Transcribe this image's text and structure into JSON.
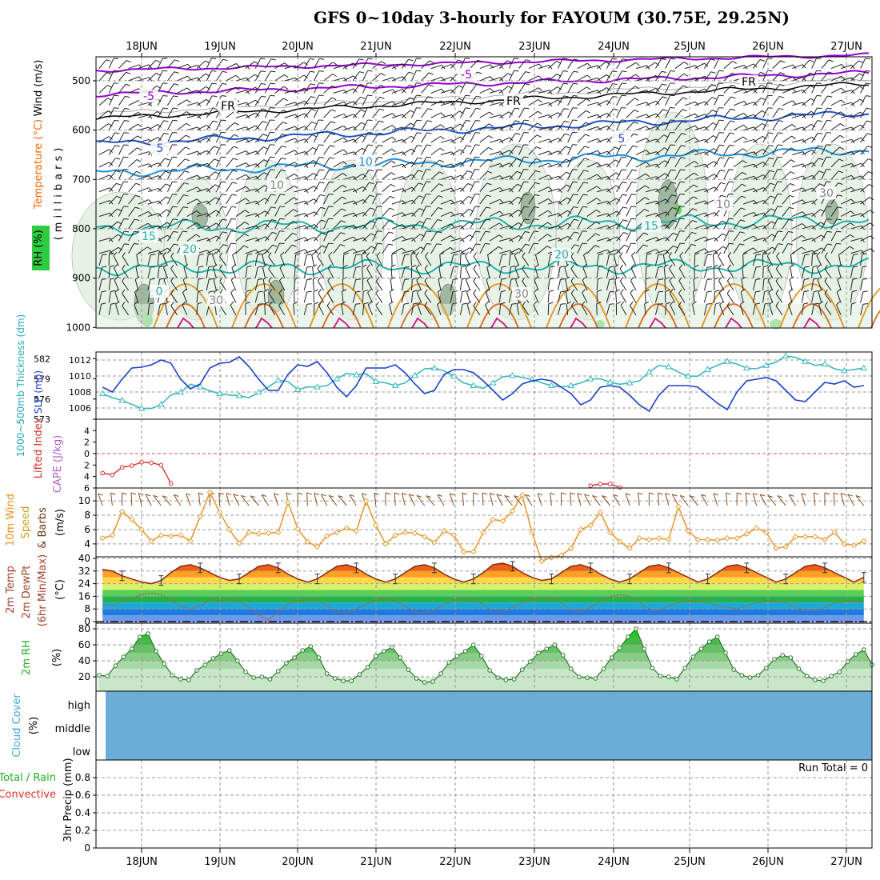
{
  "title": "GFS 0~10day 3-hourly for FAYOUM (30.75E, 29.25N)",
  "dates": [
    "18JUN",
    "19JUN",
    "20JUN",
    "21JUN",
    "22JUN",
    "23JUN",
    "24JUN",
    "25JUN",
    "26JUN",
    "27JUN"
  ],
  "panels": {
    "upper": {
      "ylabel": "(millibars)",
      "yticks": [
        "500",
        "600",
        "700",
        "800",
        "900",
        "1000"
      ],
      "legend": [
        {
          "text": "Wind (m/s)",
          "color": "#000000"
        },
        {
          "text": "Temperature (°C)",
          "color": "#ff6600"
        },
        {
          "text": "RH (%)",
          "color": "#2e8b2e"
        }
      ],
      "contour_labels": [
        {
          "text": "-5",
          "color": "#9400d3"
        },
        {
          "text": "-5",
          "color": "#9400d3"
        },
        {
          "text": "FR",
          "color": "#000000"
        },
        {
          "text": "FR",
          "color": "#000000"
        },
        {
          "text": "FR",
          "color": "#000000"
        },
        {
          "text": "5",
          "color": "#1e50c8"
        },
        {
          "text": "5",
          "color": "#1e50c8"
        },
        {
          "text": "10",
          "color": "#1e90d8"
        },
        {
          "text": "15",
          "color": "#20b2aa"
        },
        {
          "text": "15",
          "color": "#20b2aa"
        },
        {
          "text": "20",
          "color": "#20b2aa"
        },
        {
          "text": "20",
          "color": "#20b2aa"
        },
        {
          "text": "0",
          "color": "#20b2aa"
        },
        {
          "text": "10",
          "color": "#888888"
        },
        {
          "text": "10",
          "color": "#888888"
        },
        {
          "text": "30",
          "color": "#888888"
        },
        {
          "text": "30",
          "color": "#888888"
        },
        {
          "text": "30",
          "color": "#888888"
        }
      ]
    },
    "pressure": {
      "left_label": "1000~500mb Thickness (dm)",
      "right_label": "SLP (mb)",
      "yticks_left": [
        "573",
        "576",
        "579",
        "582"
      ],
      "yticks_right": [
        "1006",
        "1008",
        "1010",
        "1012"
      ]
    },
    "cape": {
      "left_label": "Lifted Index",
      "right_label": "CAPE (J/kg)",
      "yticks": [
        "-6",
        "-4",
        "-2",
        "0",
        "2",
        "4",
        "6"
      ]
    },
    "wind10m": {
      "label1": "10m Wind",
      "label2": "Speed",
      "label3": "& Barbs",
      "unit": "(m/s)",
      "yticks": [
        "4",
        "6",
        "8",
        "10"
      ]
    },
    "temp2m": {
      "label1": "2m Temp",
      "label2": "2m DewPt",
      "label3": "(6hr Min/Max)",
      "unit": "(°C)",
      "yticks": [
        "0",
        "8",
        "16",
        "24",
        "32",
        "40"
      ]
    },
    "rh2m": {
      "label": "2m RH",
      "unit": "(%)",
      "yticks": [
        "20",
        "40",
        "60",
        "80"
      ]
    },
    "cloud": {
      "label": "Cloud Cover",
      "unit": "(%)",
      "levels": [
        "high",
        "middle",
        "low"
      ]
    },
    "precip": {
      "label1": "Total / Rain",
      "label2": "Convective",
      "label3": "3hr Precip (mm)",
      "yticks": [
        "0",
        "0.2",
        "0.4",
        "0.6",
        "0.8"
      ],
      "run_total": "Run Total = 0"
    }
  },
  "chart_data": [
    {
      "type": "line",
      "name": "Sea level pressure and 1000-500mb thickness",
      "x": [
        "17JUN 12Z",
        "17JUN 15Z",
        "17JUN 18Z",
        "17JUN 21Z",
        "18JUN 00Z",
        "18JUN 03Z",
        "18JUN 06Z",
        "18JUN 09Z",
        "18JUN 12Z",
        "18JUN 15Z",
        "18JUN 18Z",
        "18JUN 21Z",
        "19JUN 00Z",
        "19JUN 03Z",
        "19JUN 06Z",
        "19JUN 09Z",
        "19JUN 12Z",
        "19JUN 15Z",
        "19JUN 18Z",
        "19JUN 21Z",
        "20JUN 00Z",
        "20JUN 03Z",
        "20JUN 06Z",
        "20JUN 09Z",
        "20JUN 12Z",
        "20JUN 15Z",
        "20JUN 18Z",
        "20JUN 21Z",
        "21JUN 00Z",
        "21JUN 03Z",
        "21JUN 06Z",
        "21JUN 09Z",
        "21JUN 12Z",
        "21JUN 15Z",
        "21JUN 18Z",
        "21JUN 21Z",
        "22JUN 00Z",
        "22JUN 03Z",
        "22JUN 06Z",
        "22JUN 09Z",
        "22JUN 12Z",
        "22JUN 15Z",
        "22JUN 18Z",
        "22JUN 21Z",
        "23JUN 00Z",
        "23JUN 03Z",
        "23JUN 06Z",
        "23JUN 09Z",
        "23JUN 12Z",
        "23JUN 15Z",
        "23JUN 18Z",
        "23JUN 21Z",
        "24JUN 00Z",
        "24JUN 03Z",
        "24JUN 06Z",
        "24JUN 09Z",
        "24JUN 12Z",
        "24JUN 15Z",
        "24JUN 18Z",
        "24JUN 21Z",
        "25JUN 00Z",
        "25JUN 03Z",
        "25JUN 06Z",
        "25JUN 09Z",
        "25JUN 12Z",
        "25JUN 15Z",
        "25JUN 18Z",
        "25JUN 21Z",
        "26JUN 00Z",
        "26JUN 03Z",
        "26JUN 06Z",
        "26JUN 09Z",
        "26JUN 12Z",
        "26JUN 15Z",
        "26JUN 18Z",
        "26JUN 21Z",
        "27JUN 00Z",
        "27JUN 03Z",
        "27JUN 06Z"
      ],
      "series": [
        {
          "name": "SLP (mb)",
          "color": "#1a3fc8",
          "values": [
            1008.6,
            1008.0,
            1009.6,
            1011.0,
            1011.1,
            1011.4,
            1012.0,
            1011.6,
            1009.6,
            1008.4,
            1009.0,
            1011.0,
            1011.6,
            1011.7,
            1012.4,
            1011.2,
            1009.6,
            1008.2,
            1008.2,
            1010.2,
            1011.4,
            1011.2,
            1011.8,
            1010.4,
            1008.6,
            1007.4,
            1008.8,
            1011.0,
            1011.0,
            1011.0,
            1011.4,
            1010.4,
            1009.0,
            1007.8,
            1008.2,
            1010.2,
            1010.8,
            1010.8,
            1010.4,
            1009.4,
            1008.2,
            1007.0,
            1007.8,
            1009.0,
            1009.4,
            1009.6,
            1009.4,
            1008.6,
            1007.8,
            1006.4,
            1007.0,
            1008.6,
            1008.8,
            1008.6,
            1007.6,
            1006.4,
            1005.6,
            1007.6,
            1008.8,
            1008.8,
            1008.8,
            1008.6,
            1007.6,
            1006.6,
            1005.8,
            1008.0,
            1009.4,
            1009.6,
            1009.8,
            1009.4,
            1008.2,
            1007.0,
            1006.8,
            1008.0,
            1009.2,
            1009.0,
            1009.4,
            1008.6,
            1008.8
          ]
        },
        {
          "name": "1000-500mb Thickness (dm)",
          "color": "#3ab8c0",
          "values": [
            576.8,
            576.2,
            575.8,
            575.2,
            574.6,
            574.6,
            575.2,
            576.6,
            577.0,
            578.2,
            577.8,
            577.2,
            576.8,
            576.6,
            576.5,
            576.2,
            577.0,
            577.8,
            578.8,
            578.6,
            577.4,
            577.8,
            577.8,
            578.0,
            579.0,
            579.8,
            579.6,
            579.8,
            578.6,
            578.4,
            578.0,
            578.4,
            579.5,
            580.5,
            580.6,
            580.2,
            579.4,
            578.4,
            578.0,
            577.6,
            578.4,
            579.3,
            579.5,
            579.2,
            578.9,
            578.4,
            578.0,
            577.8,
            578.0,
            578.4,
            579.0,
            579.0,
            578.5,
            578.2,
            578.4,
            578.7,
            580.0,
            581.0,
            580.8,
            580.0,
            579.4,
            579.4,
            580.4,
            581.0,
            581.6,
            581.2,
            580.6,
            580.5,
            581.0,
            581.5,
            582.4,
            582.2,
            581.6,
            581.0,
            581.2,
            580.5,
            580.2,
            580.4,
            580.6
          ]
        }
      ],
      "left_ylim": [
        573,
        583
      ],
      "right_ylim": [
        1004.6,
        1013.0
      ]
    },
    {
      "type": "line",
      "name": "Lifted Index",
      "series": [
        {
          "name": "Lifted Index",
          "color": "#d83030",
          "values": [
            3.4,
            3.7,
            2.4,
            2.1,
            1.5,
            1.6,
            2.0,
            5.2
          ],
          "x_start": "17JUN 12Z"
        },
        {
          "name": "Lifted Index",
          "color": "#d83030",
          "values": [
            5.6,
            5.3,
            5.3,
            5.9
          ],
          "x_start": "23JUN 18Z"
        }
      ],
      "ylim": [
        -6,
        6
      ]
    },
    {
      "type": "line",
      "name": "10m wind speed",
      "series": [
        {
          "name": "10m Wind Speed",
          "color": "#e89a30",
          "values": [
            4.8,
            5.2,
            8.5,
            7.4,
            6.0,
            4.4,
            5.2,
            5.1,
            5.2,
            4.4,
            7.8,
            11.2,
            8.4,
            6.0,
            4.1,
            5.6,
            5.4,
            5.5,
            5.6,
            9.8,
            6.1,
            4.3,
            3.6,
            5.1,
            5.6,
            6.2,
            5.8,
            10.0,
            6.6,
            4.0,
            5.2,
            5.6,
            5.5,
            5.0,
            4.2,
            5.8,
            5.2,
            2.9,
            2.9,
            5.6,
            7.4,
            7.2,
            8.6,
            10.8,
            5.6,
            1.6,
            2.1,
            2.4,
            3.4,
            6.0,
            6.6,
            8.4,
            5.6,
            4.3,
            3.4,
            4.8,
            4.6,
            4.8,
            4.6,
            9.2,
            5.8,
            4.6,
            4.6,
            4.5,
            4.8,
            4.8,
            5.4,
            6.2,
            5.6,
            3.4,
            3.6,
            5.0,
            5.0,
            5.0,
            4.6,
            5.6,
            4.0,
            3.8,
            4.4
          ]
        }
      ],
      "ylim": [
        2.2,
        11.8
      ]
    },
    {
      "type": "area",
      "name": "2m temperature and dew point",
      "series": [
        {
          "name": "2m Temp",
          "color": "#8a3020",
          "values": [
            33,
            32,
            29,
            27,
            25,
            24,
            26,
            31,
            35,
            36,
            34,
            31,
            28,
            26,
            27,
            31,
            35,
            36,
            34,
            30,
            27,
            25,
            27,
            31,
            35,
            36,
            34,
            30,
            27,
            25,
            27,
            31,
            35,
            36,
            34,
            30,
            27,
            25,
            27,
            31,
            36,
            37,
            35,
            31,
            28,
            26,
            27,
            31,
            35,
            36,
            34,
            30,
            27,
            25,
            27,
            31,
            35,
            36,
            34,
            31,
            28,
            25,
            27,
            31,
            35,
            36,
            34,
            31,
            28,
            25,
            27,
            31,
            35,
            36,
            34,
            31,
            28,
            25,
            28
          ]
        },
        {
          "name": "2m DewPt",
          "color": "#b06040",
          "values": [
            11,
            10,
            13,
            15,
            17,
            18,
            17,
            14,
            10,
            8,
            10,
            14,
            13,
            14,
            13,
            9,
            4,
            1,
            6,
            11,
            13,
            14,
            14,
            10,
            6,
            5,
            8,
            11,
            14,
            14,
            13,
            10,
            6,
            5,
            7,
            11,
            14,
            14,
            14,
            11,
            6,
            6,
            9,
            12,
            14,
            15,
            15,
            12,
            7,
            6,
            9,
            13,
            16,
            17,
            16,
            12,
            8,
            7,
            10,
            12,
            13,
            13,
            12,
            10,
            9,
            8,
            10,
            12,
            13,
            13,
            12,
            9,
            7,
            7,
            9,
            12,
            13,
            13,
            12
          ]
        }
      ],
      "ylim": [
        -1,
        41
      ]
    },
    {
      "type": "area",
      "name": "2m relative humidity",
      "series": [
        {
          "name": "2m RH",
          "color": "#3aa03a",
          "values": [
            22,
            21,
            34,
            45,
            55,
            70,
            74,
            52,
            36,
            22,
            17,
            16,
            28,
            35,
            43,
            49,
            53,
            40,
            26,
            19,
            20,
            17,
            27,
            37,
            44,
            53,
            58,
            44,
            24,
            18,
            15,
            15,
            23,
            32,
            46,
            52,
            57,
            44,
            29,
            18,
            13,
            14,
            24,
            38,
            46,
            52,
            60,
            46,
            28,
            19,
            16,
            17,
            29,
            39,
            50,
            55,
            60,
            47,
            30,
            20,
            19,
            18,
            30,
            44,
            56,
            70,
            80,
            55,
            31,
            21,
            20,
            17,
            31,
            45,
            55,
            64,
            70,
            50,
            29,
            22,
            19,
            22,
            31,
            42,
            47,
            44,
            30,
            21,
            16,
            15,
            21,
            26,
            39,
            48,
            54,
            35
          ]
        }
      ],
      "ylim": [
        2,
        87
      ]
    },
    {
      "type": "bar",
      "name": "3hr Precip",
      "categories": [
        "18JUN",
        "19JUN",
        "20JUN",
        "21JUN",
        "22JUN",
        "23JUN",
        "24JUN",
        "25JUN",
        "26JUN",
        "27JUN"
      ],
      "values": [
        0,
        0,
        0,
        0,
        0,
        0,
        0,
        0,
        0,
        0
      ],
      "ylim": [
        0,
        1
      ]
    }
  ]
}
